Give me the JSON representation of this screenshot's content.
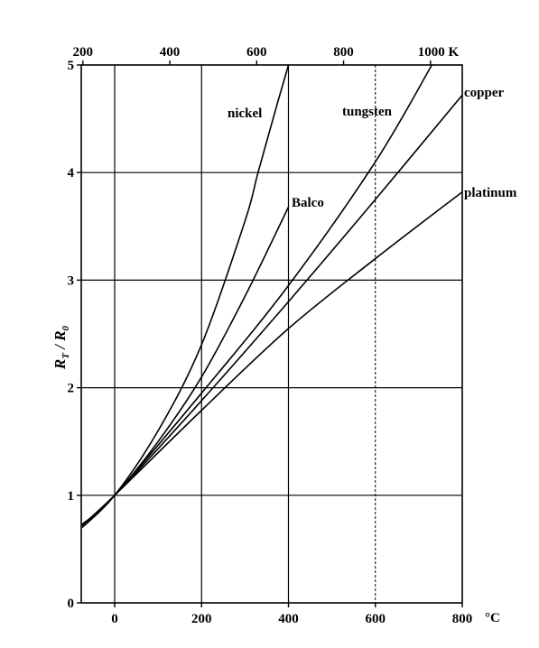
{
  "chart_data": {
    "type": "line",
    "bottom_axis": {
      "ticks": [
        {
          "value": 0,
          "label": "0"
        },
        {
          "value": 200,
          "label": "200"
        },
        {
          "value": 400,
          "label": "400"
        },
        {
          "value": 600,
          "label": "600"
        },
        {
          "value": 800,
          "label": "800"
        }
      ],
      "unit_label": "°C",
      "range": [
        -75,
        800
      ]
    },
    "top_axis": {
      "ticks": [
        {
          "value": 200,
          "label": "200"
        },
        {
          "value": 400,
          "label": "400"
        },
        {
          "value": 600,
          "label": "600"
        },
        {
          "value": 800,
          "label": "800"
        },
        {
          "value": 1000,
          "label": "1000 K"
        }
      ]
    },
    "y_axis": {
      "ticks": [
        {
          "value": 0,
          "label": "0"
        },
        {
          "value": 1,
          "label": "1"
        },
        {
          "value": 2,
          "label": "2"
        },
        {
          "value": 3,
          "label": "3"
        },
        {
          "value": 4,
          "label": "4"
        },
        {
          "value": 5,
          "label": "5"
        }
      ],
      "range": [
        0,
        5
      ],
      "label_main": "R",
      "label_sub_num": "T",
      "label_slash": " / R",
      "label_sub_den": "0"
    },
    "grid": true,
    "series": [
      {
        "name": "nickel",
        "points": [
          [
            -75,
            0.7
          ],
          [
            0,
            1.0
          ],
          [
            100,
            1.6
          ],
          [
            200,
            2.4
          ],
          [
            300,
            3.55
          ],
          [
            330,
            4.0
          ],
          [
            375,
            4.65
          ],
          [
            400,
            5.0
          ]
        ]
      },
      {
        "name": "Balco",
        "points": [
          [
            -75,
            0.72
          ],
          [
            0,
            1.0
          ],
          [
            100,
            1.5
          ],
          [
            200,
            2.1
          ],
          [
            300,
            2.85
          ],
          [
            400,
            3.68
          ]
        ]
      },
      {
        "name": "tungsten",
        "points": [
          [
            -75,
            0.73
          ],
          [
            0,
            1.0
          ],
          [
            200,
            1.95
          ],
          [
            400,
            2.95
          ],
          [
            600,
            4.1
          ],
          [
            730,
            5.0
          ]
        ]
      },
      {
        "name": "copper",
        "points": [
          [
            -75,
            0.72
          ],
          [
            0,
            1.0
          ],
          [
            200,
            1.88
          ],
          [
            400,
            2.8
          ],
          [
            600,
            3.75
          ],
          [
            800,
            4.72
          ]
        ]
      },
      {
        "name": "platinum",
        "points": [
          [
            -75,
            0.72
          ],
          [
            0,
            1.0
          ],
          [
            200,
            1.79
          ],
          [
            400,
            2.55
          ],
          [
            600,
            3.2
          ],
          [
            800,
            3.82
          ]
        ]
      }
    ],
    "series_labels": [
      {
        "name": "nickel",
        "text": "nickel"
      },
      {
        "name": "tungsten",
        "text": "tungsten"
      },
      {
        "name": "copper",
        "text": "copper"
      },
      {
        "name": "Balco",
        "text": "Balco"
      },
      {
        "name": "platinum",
        "text": "platinum"
      }
    ]
  }
}
